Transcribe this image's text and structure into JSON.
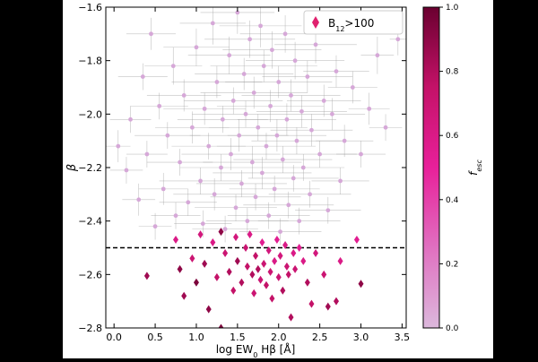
{
  "chart_data": {
    "type": "scatter",
    "xlabel": "log EW",
    "xlabel_sub": "0",
    "xlabel_rest": " Hβ [Å]",
    "ylabel": "β",
    "xlim": [
      -0.1,
      3.55
    ],
    "ylim": [
      -2.8,
      -1.6
    ],
    "x_ticks": [
      0.0,
      0.5,
      1.0,
      1.5,
      2.0,
      2.5,
      3.0,
      3.5
    ],
    "x_tick_labels": [
      "0.0",
      "0.5",
      "1.0",
      "1.5",
      "2.0",
      "2.5",
      "3.0",
      "3.5"
    ],
    "y_ticks": [
      -2.8,
      -2.6,
      -2.4,
      -2.2,
      -2.0,
      -1.8,
      -1.6
    ],
    "y_tick_labels": [
      "−2.8",
      "−2.6",
      "−2.4",
      "−2.2",
      "−2.0",
      "−1.8",
      "−1.6"
    ],
    "reference_line": {
      "y": -2.5,
      "style": "dashed",
      "color": "#000000"
    },
    "colorbar": {
      "label": "f",
      "label_sub": "esc",
      "range": [
        0.0,
        1.0
      ],
      "ticks": [
        0.0,
        0.2,
        0.4,
        0.6,
        0.8,
        1.0
      ],
      "tick_labels": [
        "0.0",
        "0.2",
        "0.4",
        "0.6",
        "0.8",
        "1.0"
      ],
      "colors": [
        "#dcb8dc",
        "#e070c0",
        "#e8209a",
        "#c41268",
        "#6a0030"
      ]
    },
    "legend": {
      "label": "B",
      "label_sub": "12",
      "label_rest": ">100",
      "location": "top-right",
      "marker": "diamond",
      "marker_color": "#e0206e"
    },
    "series": [
      {
        "marker": "circle",
        "color": "#d6a8d8",
        "error_color": "#9a9a9a",
        "points": [
          {
            "x": 0.05,
            "y": -2.12,
            "xerr": 0.15,
            "yerr": 0.06
          },
          {
            "x": 0.15,
            "y": -2.21,
            "xerr": 0.2,
            "yerr": 0.05
          },
          {
            "x": 0.2,
            "y": -2.02,
            "xerr": 0.25,
            "yerr": 0.05
          },
          {
            "x": 0.3,
            "y": -2.32,
            "xerr": 0.2,
            "yerr": 0.06
          },
          {
            "x": 0.35,
            "y": -1.86,
            "xerr": 0.3,
            "yerr": 0.05
          },
          {
            "x": 0.4,
            "y": -2.15,
            "xerr": 0.25,
            "yerr": 0.05
          },
          {
            "x": 0.45,
            "y": -1.7,
            "xerr": 0.3,
            "yerr": 0.06
          },
          {
            "x": 0.5,
            "y": -2.42,
            "xerr": 0.2,
            "yerr": 0.05
          },
          {
            "x": 0.55,
            "y": -1.97,
            "xerr": 0.35,
            "yerr": 0.05
          },
          {
            "x": 0.6,
            "y": -2.28,
            "xerr": 0.3,
            "yerr": 0.06
          },
          {
            "x": 0.65,
            "y": -2.08,
            "xerr": 0.4,
            "yerr": 0.05
          },
          {
            "x": 0.72,
            "y": -1.82,
            "xerr": 0.35,
            "yerr": 0.07
          },
          {
            "x": 0.75,
            "y": -2.38,
            "xerr": 0.3,
            "yerr": 0.05
          },
          {
            "x": 0.8,
            "y": -2.18,
            "xerr": 0.4,
            "yerr": 0.05
          },
          {
            "x": 0.85,
            "y": -1.93,
            "xerr": 0.45,
            "yerr": 0.06
          },
          {
            "x": 0.9,
            "y": -2.33,
            "xerr": 0.35,
            "yerr": 0.05
          },
          {
            "x": 0.95,
            "y": -2.05,
            "xerr": 0.45,
            "yerr": 0.06
          },
          {
            "x": 1.0,
            "y": -1.75,
            "xerr": 0.4,
            "yerr": 0.07
          },
          {
            "x": 1.05,
            "y": -2.25,
            "xerr": 0.5,
            "yerr": 0.05
          },
          {
            "x": 1.08,
            "y": -2.41,
            "xerr": 0.35,
            "yerr": 0.05
          },
          {
            "x": 1.1,
            "y": -1.98,
            "xerr": 0.5,
            "yerr": 0.06
          },
          {
            "x": 1.15,
            "y": -2.12,
            "xerr": 0.45,
            "yerr": 0.05
          },
          {
            "x": 1.2,
            "y": -1.66,
            "xerr": 0.4,
            "yerr": 0.08
          },
          {
            "x": 1.22,
            "y": -2.3,
            "xerr": 0.5,
            "yerr": 0.06
          },
          {
            "x": 1.25,
            "y": -1.88,
            "xerr": 0.55,
            "yerr": 0.06
          },
          {
            "x": 1.3,
            "y": -2.2,
            "xerr": 0.5,
            "yerr": 0.05
          },
          {
            "x": 1.32,
            "y": -2.02,
            "xerr": 0.55,
            "yerr": 0.05
          },
          {
            "x": 1.35,
            "y": -2.43,
            "xerr": 0.4,
            "yerr": 0.05
          },
          {
            "x": 1.4,
            "y": -1.78,
            "xerr": 0.5,
            "yerr": 0.07
          },
          {
            "x": 1.42,
            "y": -2.15,
            "xerr": 0.6,
            "yerr": 0.06
          },
          {
            "x": 1.45,
            "y": -1.95,
            "xerr": 0.6,
            "yerr": 0.05
          },
          {
            "x": 1.48,
            "y": -2.35,
            "xerr": 0.5,
            "yerr": 0.05
          },
          {
            "x": 1.5,
            "y": -1.62,
            "xerr": 0.45,
            "yerr": 0.08
          },
          {
            "x": 1.52,
            "y": -2.08,
            "xerr": 0.6,
            "yerr": 0.06
          },
          {
            "x": 1.55,
            "y": -2.26,
            "xerr": 0.55,
            "yerr": 0.05
          },
          {
            "x": 1.58,
            "y": -1.85,
            "xerr": 0.6,
            "yerr": 0.06
          },
          {
            "x": 1.6,
            "y": -2.0,
            "xerr": 0.65,
            "yerr": 0.05
          },
          {
            "x": 1.62,
            "y": -2.4,
            "xerr": 0.5,
            "yerr": 0.05
          },
          {
            "x": 1.65,
            "y": -1.72,
            "xerr": 0.55,
            "yerr": 0.07
          },
          {
            "x": 1.68,
            "y": -2.18,
            "xerr": 0.6,
            "yerr": 0.06
          },
          {
            "x": 1.7,
            "y": -1.92,
            "xerr": 0.65,
            "yerr": 0.06
          },
          {
            "x": 1.72,
            "y": -2.31,
            "xerr": 0.55,
            "yerr": 0.05
          },
          {
            "x": 1.75,
            "y": -2.05,
            "xerr": 0.6,
            "yerr": 0.05
          },
          {
            "x": 1.78,
            "y": -1.67,
            "xerr": 0.5,
            "yerr": 0.08
          },
          {
            "x": 1.8,
            "y": -2.22,
            "xerr": 0.6,
            "yerr": 0.06
          },
          {
            "x": 1.82,
            "y": -1.82,
            "xerr": 0.65,
            "yerr": 0.06
          },
          {
            "x": 1.85,
            "y": -2.12,
            "xerr": 0.6,
            "yerr": 0.05
          },
          {
            "x": 1.88,
            "y": -2.38,
            "xerr": 0.5,
            "yerr": 0.05
          },
          {
            "x": 1.9,
            "y": -1.97,
            "xerr": 0.65,
            "yerr": 0.06
          },
          {
            "x": 1.92,
            "y": -1.76,
            "xerr": 0.6,
            "yerr": 0.07
          },
          {
            "x": 1.95,
            "y": -2.28,
            "xerr": 0.55,
            "yerr": 0.05
          },
          {
            "x": 1.98,
            "y": -2.08,
            "xerr": 0.6,
            "yerr": 0.06
          },
          {
            "x": 2.0,
            "y": -1.88,
            "xerr": 0.65,
            "yerr": 0.06
          },
          {
            "x": 2.02,
            "y": -2.44,
            "xerr": 0.5,
            "yerr": 0.05
          },
          {
            "x": 2.05,
            "y": -2.17,
            "xerr": 0.6,
            "yerr": 0.05
          },
          {
            "x": 2.08,
            "y": -1.7,
            "xerr": 0.55,
            "yerr": 0.07
          },
          {
            "x": 2.1,
            "y": -2.02,
            "xerr": 0.6,
            "yerr": 0.06
          },
          {
            "x": 2.12,
            "y": -2.34,
            "xerr": 0.55,
            "yerr": 0.05
          },
          {
            "x": 2.15,
            "y": -1.93,
            "xerr": 0.6,
            "yerr": 0.06
          },
          {
            "x": 2.18,
            "y": -2.24,
            "xerr": 0.55,
            "yerr": 0.05
          },
          {
            "x": 2.2,
            "y": -1.8,
            "xerr": 0.6,
            "yerr": 0.07
          },
          {
            "x": 2.22,
            "y": -2.1,
            "xerr": 0.55,
            "yerr": 0.05
          },
          {
            "x": 2.25,
            "y": -2.4,
            "xerr": 0.5,
            "yerr": 0.05
          },
          {
            "x": 2.28,
            "y": -1.99,
            "xerr": 0.55,
            "yerr": 0.06
          },
          {
            "x": 2.3,
            "y": -2.2,
            "xerr": 0.5,
            "yerr": 0.05
          },
          {
            "x": 2.35,
            "y": -1.86,
            "xerr": 0.55,
            "yerr": 0.06
          },
          {
            "x": 2.38,
            "y": -2.3,
            "xerr": 0.5,
            "yerr": 0.05
          },
          {
            "x": 2.4,
            "y": -2.06,
            "xerr": 0.5,
            "yerr": 0.06
          },
          {
            "x": 2.45,
            "y": -1.74,
            "xerr": 0.5,
            "yerr": 0.07
          },
          {
            "x": 2.5,
            "y": -2.15,
            "xerr": 0.45,
            "yerr": 0.05
          },
          {
            "x": 2.55,
            "y": -1.95,
            "xerr": 0.45,
            "yerr": 0.06
          },
          {
            "x": 2.6,
            "y": -2.36,
            "xerr": 0.4,
            "yerr": 0.05
          },
          {
            "x": 2.65,
            "y": -2.0,
            "xerr": 0.4,
            "yerr": 0.06
          },
          {
            "x": 2.7,
            "y": -1.84,
            "xerr": 0.4,
            "yerr": 0.06
          },
          {
            "x": 2.75,
            "y": -2.25,
            "xerr": 0.35,
            "yerr": 0.05
          },
          {
            "x": 2.8,
            "y": -2.1,
            "xerr": 0.35,
            "yerr": 0.06
          },
          {
            "x": 2.9,
            "y": -1.9,
            "xerr": 0.3,
            "yerr": 0.06
          },
          {
            "x": 3.0,
            "y": -2.15,
            "xerr": 0.3,
            "yerr": 0.05
          },
          {
            "x": 3.1,
            "y": -1.98,
            "xerr": 0.25,
            "yerr": 0.06
          },
          {
            "x": 3.2,
            "y": -1.78,
            "xerr": 0.2,
            "yerr": 0.07
          },
          {
            "x": 3.3,
            "y": -2.05,
            "xerr": 0.2,
            "yerr": 0.05
          },
          {
            "x": 3.45,
            "y": -1.72,
            "xerr": 0.1,
            "yerr": 0.06
          }
        ]
      },
      {
        "name": "B12>100",
        "marker": "diamond",
        "points": [
          {
            "x": 0.4,
            "y": -2.605,
            "c": 0.85
          },
          {
            "x": 0.75,
            "y": -2.47,
            "c": 0.6
          },
          {
            "x": 0.8,
            "y": -2.58,
            "c": 0.9
          },
          {
            "x": 0.85,
            "y": -2.68,
            "c": 0.85
          },
          {
            "x": 0.95,
            "y": -2.54,
            "c": 0.7
          },
          {
            "x": 1.0,
            "y": -2.63,
            "c": 0.95
          },
          {
            "x": 1.05,
            "y": -2.45,
            "c": 0.65
          },
          {
            "x": 1.1,
            "y": -2.56,
            "c": 0.85
          },
          {
            "x": 1.15,
            "y": -2.73,
            "c": 0.9
          },
          {
            "x": 1.2,
            "y": -2.48,
            "c": 0.6
          },
          {
            "x": 1.25,
            "y": -2.61,
            "c": 0.75
          },
          {
            "x": 1.3,
            "y": -2.44,
            "c": 0.9
          },
          {
            "x": 1.3,
            "y": -2.8,
            "c": 0.95
          },
          {
            "x": 1.35,
            "y": -2.52,
            "c": 0.7
          },
          {
            "x": 1.4,
            "y": -2.59,
            "c": 0.8
          },
          {
            "x": 1.45,
            "y": -2.66,
            "c": 0.75
          },
          {
            "x": 1.48,
            "y": -2.46,
            "c": 0.65
          },
          {
            "x": 1.5,
            "y": -2.55,
            "c": 0.85
          },
          {
            "x": 1.55,
            "y": -2.63,
            "c": 0.8
          },
          {
            "x": 1.6,
            "y": -2.5,
            "c": 0.7
          },
          {
            "x": 1.62,
            "y": -2.57,
            "c": 0.75
          },
          {
            "x": 1.65,
            "y": -2.45,
            "c": 0.6
          },
          {
            "x": 1.68,
            "y": -2.6,
            "c": 0.8
          },
          {
            "x": 1.7,
            "y": -2.67,
            "c": 0.7
          },
          {
            "x": 1.72,
            "y": -2.53,
            "c": 0.75
          },
          {
            "x": 1.75,
            "y": -2.58,
            "c": 0.8
          },
          {
            "x": 1.78,
            "y": -2.62,
            "c": 0.7
          },
          {
            "x": 1.8,
            "y": -2.48,
            "c": 0.55
          },
          {
            "x": 1.82,
            "y": -2.56,
            "c": 0.7
          },
          {
            "x": 1.85,
            "y": -2.64,
            "c": 0.75
          },
          {
            "x": 1.88,
            "y": -2.51,
            "c": 0.65
          },
          {
            "x": 1.9,
            "y": -2.59,
            "c": 0.7
          },
          {
            "x": 1.92,
            "y": -2.69,
            "c": 0.75
          },
          {
            "x": 1.95,
            "y": -2.55,
            "c": 0.6
          },
          {
            "x": 1.98,
            "y": -2.47,
            "c": 0.55
          },
          {
            "x": 2.0,
            "y": -2.61,
            "c": 0.7
          },
          {
            "x": 2.02,
            "y": -2.53,
            "c": 0.65
          },
          {
            "x": 2.05,
            "y": -2.66,
            "c": 0.8
          },
          {
            "x": 2.08,
            "y": -2.49,
            "c": 0.6
          },
          {
            "x": 2.1,
            "y": -2.57,
            "c": 0.7
          },
          {
            "x": 2.12,
            "y": -2.6,
            "c": 0.75
          },
          {
            "x": 2.15,
            "y": -2.76,
            "c": 0.8
          },
          {
            "x": 2.18,
            "y": -2.52,
            "c": 0.6
          },
          {
            "x": 2.2,
            "y": -2.58,
            "c": 0.7
          },
          {
            "x": 2.25,
            "y": -2.5,
            "c": 0.55
          },
          {
            "x": 2.3,
            "y": -2.55,
            "c": 0.6
          },
          {
            "x": 2.35,
            "y": -2.63,
            "c": 0.8
          },
          {
            "x": 2.4,
            "y": -2.71,
            "c": 0.75
          },
          {
            "x": 2.45,
            "y": -2.52,
            "c": 0.65
          },
          {
            "x": 2.55,
            "y": -2.6,
            "c": 0.7
          },
          {
            "x": 2.6,
            "y": -2.72,
            "c": 0.85
          },
          {
            "x": 2.7,
            "y": -2.7,
            "c": 0.8
          },
          {
            "x": 2.75,
            "y": -2.55,
            "c": 0.6
          },
          {
            "x": 2.95,
            "y": -2.47,
            "c": 0.55
          },
          {
            "x": 3.0,
            "y": -2.635,
            "c": 0.9
          }
        ]
      }
    ]
  }
}
